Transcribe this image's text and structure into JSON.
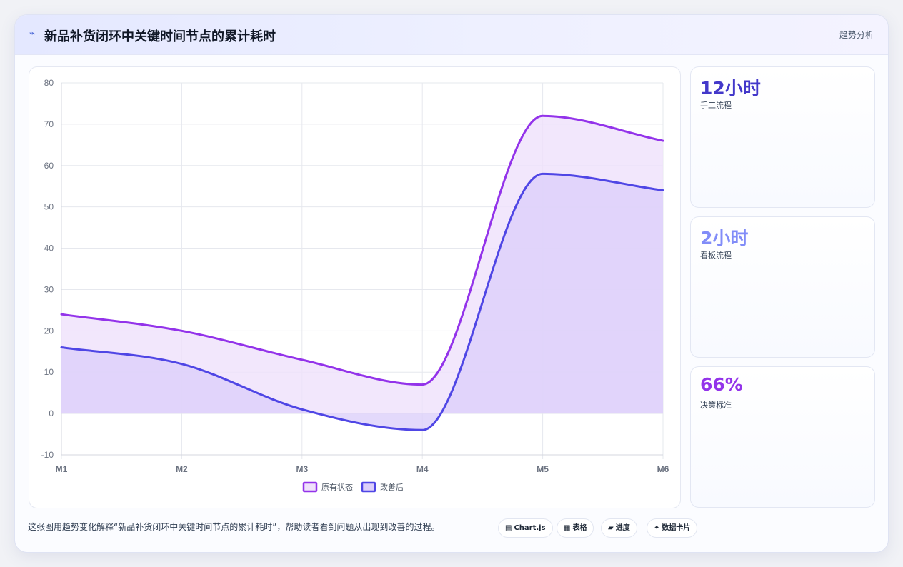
{
  "header": {
    "title_icon": "chart-line-icon",
    "title": "新品补货闭环中关键时间节点的累计耗时",
    "tag": "趋势分析"
  },
  "chart_data": {
    "type": "area",
    "categories": [
      "M1",
      "M2",
      "M3",
      "M4",
      "M5",
      "M6"
    ],
    "ylim": [
      -10,
      80
    ],
    "yticks": [
      80,
      70,
      60,
      50,
      40,
      30,
      20,
      10,
      0,
      -10
    ],
    "grid": true,
    "legend_position": "bottom",
    "series": [
      {
        "name": "原有状态",
        "values": [
          24,
          20,
          13,
          7,
          72,
          66
        ],
        "color": "#9333ea",
        "fill": "#efe1fb"
      },
      {
        "name": "改善后",
        "values": [
          16,
          12,
          1,
          -4,
          58,
          54
        ],
        "color": "#4f46e5",
        "fill": "#dccffa"
      }
    ]
  },
  "stats": [
    {
      "value": "12小时",
      "label": "手工流程",
      "color": "#4338ca"
    },
    {
      "value": "2小时",
      "label": "看板流程",
      "color": "#818cf8"
    },
    {
      "value": "66%",
      "label": "决策标准",
      "color": "#9333ea"
    }
  ],
  "footer": {
    "description": "这张图用趋势变化解释“新品补货闭环中关键时间节点的累计耗时”，帮助读者看到问题从出现到改善的过程。",
    "chips": [
      {
        "icon": "▤",
        "label": "Chart.js"
      },
      {
        "icon": "▦",
        "label": "表格"
      },
      {
        "icon": "▰",
        "label": "进度"
      },
      {
        "icon": "✦",
        "label": "数据卡片"
      }
    ]
  }
}
